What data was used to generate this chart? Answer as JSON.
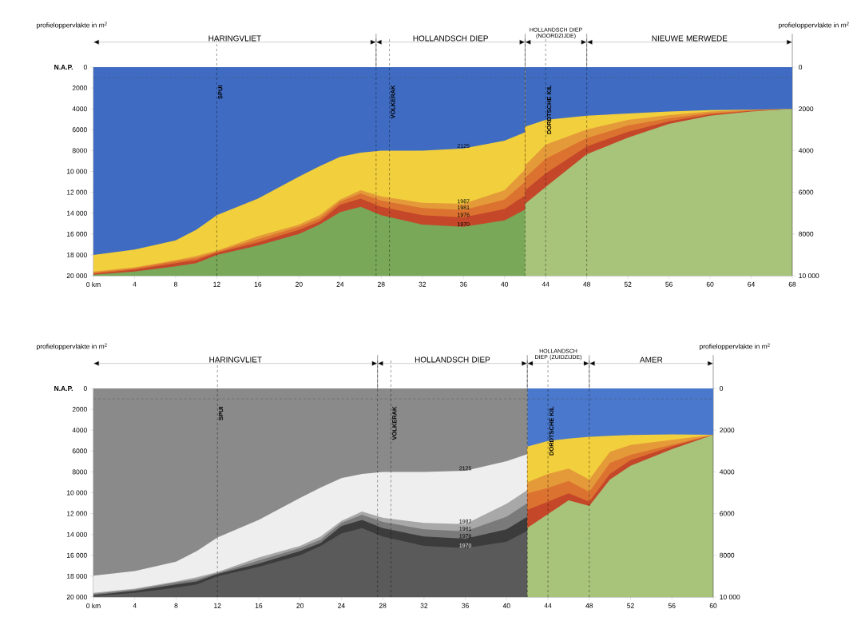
{
  "chart_data": [
    {
      "type": "area",
      "ylabel": "profieloppervlakte in m$^{2}$",
      "y2label": "profieloppervlakte in m$^{2}$",
      "xlim": [
        0,
        68
      ],
      "xticks": [
        {
          "value": 0,
          "label": "0 km"
        },
        4,
        8,
        12,
        16,
        20,
        24,
        28,
        32,
        36,
        40,
        44,
        48,
        52,
        56,
        60,
        64,
        68
      ],
      "ylim": [
        20000,
        0
      ],
      "yticks": [
        0,
        2000,
        4000,
        6000,
        8000,
        {
          "value": 10000,
          "label": "10 000"
        },
        {
          "value": 12000,
          "label": "12 000"
        },
        {
          "value": 14000,
          "label": "14 000"
        },
        {
          "value": 16000,
          "label": "16 000"
        },
        {
          "value": 18000,
          "label": "18 000"
        },
        {
          "value": 20000,
          "label": "20 000"
        }
      ],
      "y2lim": [
        10000,
        0
      ],
      "y2ticks": [
        0,
        2000,
        4000,
        6000,
        8000,
        {
          "value": 10000,
          "label": "10 000"
        }
      ],
      "bands": [
        {
          "axis": "y",
          "from": 0,
          "to": 20000,
          "color": "#78a858"
        },
        {
          "axis": "x",
          "from": 42,
          "to": 68,
          "color": "#a8c47a"
        }
      ],
      "series": [
        {
          "name": "1970",
          "color": "#c4472a",
          "x": [
            0,
            4,
            8,
            10,
            12,
            16,
            20,
            22,
            24,
            26,
            28,
            32,
            36,
            40,
            42
          ],
          "values": [
            19900,
            19600,
            19100,
            18800,
            18000,
            17100,
            16000,
            15100,
            13900,
            13400,
            14200,
            15100,
            15300,
            14700,
            13650
          ]
        },
        {
          "name": "1976",
          "color": "#dc7230",
          "x": [
            0,
            4,
            8,
            10,
            12,
            16,
            20,
            22,
            24,
            26,
            28,
            32,
            36,
            40,
            42
          ],
          "values": [
            19800,
            19400,
            18800,
            18500,
            17800,
            16800,
            15600,
            14800,
            13200,
            12600,
            13400,
            14200,
            14400,
            13600,
            12300
          ]
        },
        {
          "name": "1981",
          "color": "#e59a3a",
          "x": [
            0,
            4,
            8,
            10,
            12,
            16,
            20,
            22,
            24,
            26,
            28,
            32,
            36,
            40,
            42
          ],
          "values": [
            19700,
            19300,
            18600,
            18300,
            17700,
            16500,
            15300,
            14500,
            12900,
            12100,
            12800,
            13500,
            13700,
            12700,
            11000
          ]
        },
        {
          "name": "1987",
          "color": "#f2cf3c",
          "x": [
            0,
            4,
            8,
            10,
            12,
            16,
            20,
            22,
            24,
            26,
            28,
            32,
            36,
            40,
            42
          ],
          "values": [
            19600,
            19200,
            18500,
            18100,
            17600,
            16200,
            15100,
            14200,
            12700,
            11800,
            12400,
            13000,
            13100,
            11800,
            9800
          ]
        },
        {
          "name": "2125",
          "color": "#3f6cc2",
          "x": [
            0,
            4,
            8,
            10,
            12,
            16,
            20,
            22,
            24,
            26,
            28,
            32,
            36,
            40,
            42
          ],
          "values": [
            18000,
            17500,
            16600,
            15600,
            14200,
            12600,
            10500,
            9500,
            8600,
            8200,
            8000,
            8000,
            7800,
            7050,
            6250
          ]
        },
        {
          "color": "#c4472a",
          "axis": "y2",
          "x": [
            42,
            44,
            48,
            52,
            56,
            60,
            64,
            68
          ],
          "values": [
            6550,
            5750,
            4180,
            3380,
            2720,
            2330,
            2130,
            2000
          ]
        },
        {
          "color": "#dc7230",
          "axis": "y2",
          "x": [
            42,
            44,
            48,
            52,
            56,
            60,
            64,
            68
          ],
          "values": [
            5900,
            5100,
            3800,
            3100,
            2600,
            2270,
            2100,
            2000
          ]
        },
        {
          "color": "#e59a3a",
          "axis": "y2",
          "x": [
            42,
            44,
            48,
            52,
            56,
            60,
            64,
            68
          ],
          "values": [
            5300,
            4400,
            3400,
            2800,
            2450,
            2200,
            2080,
            2000
          ]
        },
        {
          "color": "#f2cf3c",
          "axis": "y2",
          "x": [
            42,
            44,
            48,
            52,
            56,
            60,
            64,
            68
          ],
          "values": [
            4710,
            3720,
            2990,
            2530,
            2300,
            2130,
            2040,
            2000
          ]
        },
        {
          "color": "#3f6cc2",
          "axis": "y2",
          "x": [
            42,
            44,
            48,
            52,
            56,
            60,
            64,
            68
          ],
          "values": [
            2850,
            2530,
            2330,
            2220,
            2130,
            2060,
            2040,
            2000
          ]
        }
      ],
      "ref_lines": [
        {
          "axis": "y",
          "value": 1000,
          "line_style": "dashed"
        },
        {
          "axis": "x",
          "value": 12,
          "label": "SPUI",
          "line_style": "dashed"
        },
        {
          "axis": "x",
          "value": 27.5,
          "line_style": "dashed"
        },
        {
          "axis": "x",
          "value": 28.8,
          "label": "VOLKERAK",
          "line_style": "dashed"
        },
        {
          "axis": "x",
          "value": 42,
          "line_style": "dashed"
        },
        {
          "axis": "x",
          "value": 44,
          "label": "DORDTSCHE KIL",
          "line_style": "dashed"
        },
        {
          "axis": "x",
          "value": 48,
          "line_style": "dashed"
        }
      ],
      "annotations": [
        "N.A.P.",
        "HARINGVLIET",
        "HOLLANDSCH DIEP",
        "HOLLANDSCH DIEP (NOORDZIJDE)",
        "NIEUWE MERWEDE"
      ]
    },
    {
      "type": "area",
      "ylabel": "profieloppervlakte in m$^{2}$",
      "y2label": "profieloppervlakte in m$^{2}$",
      "xlim": [
        0,
        60
      ],
      "xticks": [
        {
          "value": 0,
          "label": "0 km"
        },
        4,
        8,
        12,
        16,
        20,
        24,
        28,
        32,
        36,
        40,
        44,
        48,
        52,
        56,
        60
      ],
      "ylim": [
        20000,
        0
      ],
      "yticks": [
        0,
        2000,
        4000,
        6000,
        8000,
        {
          "value": 10000,
          "label": "10 000"
        },
        {
          "value": 12000,
          "label": "12 000"
        },
        {
          "value": 14000,
          "label": "14 000"
        },
        {
          "value": 16000,
          "label": "16 000"
        },
        {
          "value": 18000,
          "label": "18 000"
        },
        {
          "value": 20000,
          "label": "20 000"
        }
      ],
      "y2lim": [
        10000,
        0
      ],
      "y2ticks": [
        0,
        2000,
        4000,
        6000,
        8000,
        {
          "value": 10000,
          "label": "10 000"
        }
      ],
      "bands": [
        {
          "axis": "y",
          "from": 0,
          "to": 20000,
          "color": "#5a5a5a"
        },
        {
          "axis": "x",
          "from": 42,
          "to": 60,
          "color": "#a8c47a"
        }
      ],
      "series": [
        {
          "name": "1970",
          "color": "#3c3c3c",
          "x": [
            0,
            4,
            8,
            10,
            12,
            16,
            20,
            22,
            24,
            26,
            28,
            32,
            36,
            40,
            42
          ],
          "values": [
            19900,
            19600,
            19100,
            18800,
            18000,
            17100,
            16000,
            15100,
            13900,
            13400,
            14200,
            15100,
            15300,
            14700,
            13650
          ]
        },
        {
          "name": "1976",
          "color": "#7a7a7a",
          "x": [
            0,
            4,
            8,
            10,
            12,
            16,
            20,
            22,
            24,
            26,
            28,
            32,
            36,
            40,
            42
          ],
          "values": [
            19800,
            19400,
            18800,
            18500,
            17800,
            16800,
            15600,
            14800,
            13200,
            12600,
            13400,
            14200,
            14400,
            13500,
            12300
          ]
        },
        {
          "name": "1981",
          "color": "#a8a8a8",
          "x": [
            0,
            4,
            8,
            10,
            12,
            16,
            20,
            22,
            24,
            26,
            28,
            32,
            36,
            40,
            42
          ],
          "values": [
            19700,
            19300,
            18600,
            18300,
            17700,
            16500,
            15300,
            14500,
            12900,
            12100,
            12800,
            13500,
            13700,
            12300,
            11000
          ]
        },
        {
          "name": "1987",
          "color": "#eeeeee",
          "x": [
            0,
            4,
            8,
            10,
            12,
            16,
            20,
            22,
            24,
            26,
            28,
            32,
            36,
            40,
            42
          ],
          "values": [
            19600,
            19200,
            18500,
            18100,
            17600,
            16200,
            15100,
            14200,
            12700,
            11800,
            12400,
            12900,
            13000,
            11050,
            9750
          ]
        },
        {
          "name": "2125",
          "color": "#8a8a8a",
          "x": [
            0,
            4,
            8,
            10,
            12,
            16,
            20,
            22,
            24,
            26,
            28,
            32,
            36,
            40,
            42
          ],
          "values": [
            17950,
            17500,
            16600,
            15600,
            14300,
            12600,
            10500,
            9500,
            8600,
            8200,
            8000,
            8000,
            7900,
            6980,
            6300
          ]
        },
        {
          "color": "#c4472a",
          "axis": "y2",
          "x": [
            42,
            44,
            46,
            48,
            50,
            52,
            56,
            60
          ],
          "values": [
            6690,
            6020,
            5360,
            5630,
            4370,
            3710,
            2910,
            2220
          ]
        },
        {
          "color": "#dc7230",
          "axis": "y2",
          "x": [
            42,
            44,
            46,
            48,
            50,
            52,
            56,
            60
          ],
          "values": [
            5820,
            5430,
            5030,
            5430,
            4100,
            3440,
            2780,
            2220
          ]
        },
        {
          "color": "#e59a3a",
          "axis": "y2",
          "x": [
            42,
            44,
            46,
            48,
            50,
            52,
            56,
            60
          ],
          "values": [
            5030,
            4770,
            4430,
            4960,
            3570,
            3180,
            null,
            2220
          ]
        },
        {
          "color": "#f2cf3c",
          "axis": "y2",
          "x": [
            42,
            44,
            46,
            48,
            50,
            52,
            56,
            60
          ],
          "values": [
            4500,
            4100,
            3840,
            4370,
            3040,
            2710,
            null,
            2220
          ]
        },
        {
          "color": "#4a78cc",
          "axis": "y2",
          "x": [
            42,
            44,
            46,
            48,
            50,
            52,
            56,
            60
          ],
          "values": [
            2790,
            2520,
            2400,
            2320,
            2270,
            2230,
            2200,
            2220
          ]
        }
      ],
      "ref_lines": [
        {
          "axis": "y",
          "value": 1000,
          "line_style": "dashed"
        },
        {
          "axis": "x",
          "value": 12,
          "label": "SPUI",
          "line_style": "dashed"
        },
        {
          "axis": "x",
          "value": 27.5,
          "line_style": "dashed"
        },
        {
          "axis": "x",
          "value": 28.8,
          "label": "VOLKERAK",
          "line_style": "dashed"
        },
        {
          "axis": "x",
          "value": 42,
          "line_style": "dashed"
        },
        {
          "axis": "x",
          "value": 44,
          "label": "DORDTSCHE KIL",
          "line_style": "dashed"
        },
        {
          "axis": "x",
          "value": 48,
          "line_style": "dashed"
        }
      ],
      "annotations": [
        "N.A.P.",
        "HARINGVLIET",
        "HOLLANDSCH DIEP",
        "HOLLANDSCH DIEP (ZUIDZIJDE)",
        "AMER"
      ]
    }
  ]
}
